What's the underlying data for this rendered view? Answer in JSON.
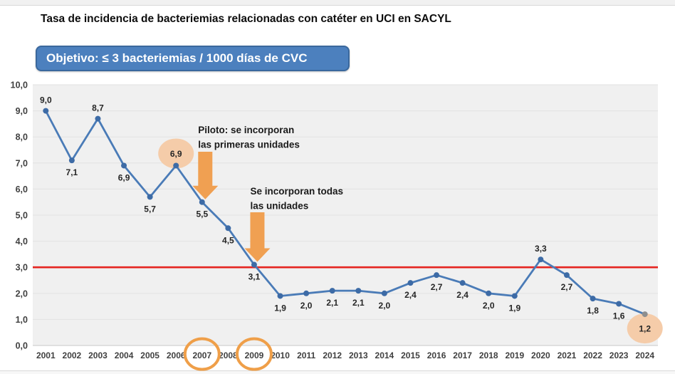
{
  "title": "Tasa de incidencia de bacteriemias relacionadas con catéter en UCI en SACYL",
  "objective": {
    "label": "Objetivo: ≤ 3 bacteriemias / 1000 días de CVC",
    "threshold": 3
  },
  "chart_data": {
    "type": "line",
    "title": "Tasa de incidencia de bacteriemias relacionadas con catéter en UCI en SACYL",
    "categories": [
      "2001",
      "2002",
      "2003",
      "2004",
      "2005",
      "2006",
      "2007",
      "2008",
      "2009",
      "2010",
      "2011",
      "2012",
      "2013",
      "2014",
      "2015",
      "2016",
      "2017",
      "2018",
      "2019",
      "2020",
      "2021",
      "2022",
      "2023",
      "2024"
    ],
    "values": [
      9.0,
      7.1,
      8.7,
      6.9,
      5.7,
      6.9,
      5.5,
      4.5,
      3.1,
      1.9,
      2.0,
      2.1,
      2.1,
      2.0,
      2.4,
      2.7,
      2.4,
      2.0,
      1.9,
      3.3,
      2.7,
      1.8,
      1.6,
      1.2
    ],
    "point_labels": [
      "9,0",
      "7,1",
      "8,7",
      "6,9",
      "5,7",
      "6,9",
      "5,5",
      "4,5",
      "3,1",
      "1,9",
      "2,0",
      "2,1",
      "2,1",
      "2,0",
      "2,4",
      "2,7",
      "2,4",
      "2,0",
      "1,9",
      "3,3",
      "2,7",
      "1,8",
      "1,6",
      "1,2"
    ],
    "label_placement": [
      "above",
      "below",
      "above",
      "below",
      "below",
      "circle-above",
      "below",
      "below",
      "below",
      "below",
      "below",
      "below",
      "below",
      "below",
      "below",
      "below",
      "below",
      "below",
      "below",
      "above",
      "below",
      "below",
      "below",
      "circle-below"
    ],
    "ylim": [
      0,
      10
    ],
    "y_tick_values": [
      0,
      1,
      2,
      3,
      4,
      5,
      6,
      7,
      8,
      9,
      10
    ],
    "y_tick_labels": [
      "0,0",
      "1,0",
      "2,0",
      "3,0",
      "4,0",
      "5,0",
      "6,0",
      "7,0",
      "8,0",
      "9,0",
      "10,0"
    ],
    "grid": "horizontal",
    "legend": "none",
    "reference_line": {
      "value": 3
    },
    "highlighted_points": [
      {
        "year": "2006",
        "label": "6,9"
      },
      {
        "year": "2024",
        "label": "1,2"
      }
    ],
    "circled_x_labels": [
      "2007",
      "2009"
    ],
    "annotations": [
      {
        "lines": [
          "Piloto: se incorporan",
          "las primeras unidades"
        ],
        "target_year": "2007"
      },
      {
        "lines": [
          "Se incorporan todas",
          "las unidades"
        ],
        "target_year": "2009"
      }
    ]
  },
  "colors": {
    "line": "#4A7BB7",
    "marker": "#3D6BA6",
    "last_marker": "#8E8E8E",
    "reference_line": "#E52520",
    "arrow": "#F0A052",
    "highlight": "#F5CCA9",
    "year_circle": "#EF9F49",
    "objective_bg": "#4C80BE",
    "objective_border": "#3A689D",
    "plot_bg": "#F0F0F0",
    "gridline": "#E2E2E2",
    "axis_line": "#C8C8C8",
    "axis_text": "#404040",
    "label_text": "#262626",
    "annotation_text": "#1A1A1A"
  }
}
